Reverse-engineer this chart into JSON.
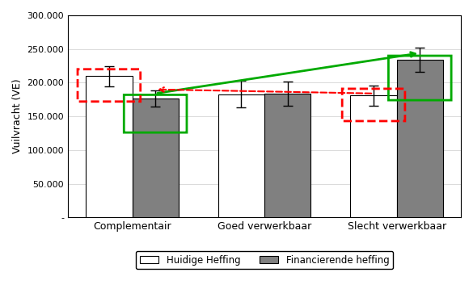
{
  "categories": [
    "Complementair",
    "Goed verwerkbaar",
    "Slecht verwerkbaar"
  ],
  "huidige_values": [
    210000,
    183000,
    181000
  ],
  "financierende_values": [
    176000,
    184000,
    234000
  ],
  "huidige_errors": [
    15000,
    20000,
    15000
  ],
  "financierende_errors": [
    12000,
    18000,
    18000
  ],
  "bar_width": 0.35,
  "huidige_color": "#ffffff",
  "financierende_color": "#808080",
  "bar_edge_color": "#000000",
  "ylabel": "Vuilvracht (VE)",
  "ylim_min": 0,
  "ylim_max": 300000,
  "yticks": [
    0,
    50000,
    100000,
    150000,
    200000,
    250000,
    300000
  ],
  "ytick_labels": [
    "-",
    "50.000",
    "100.000",
    "150.000",
    "200.000",
    "250.000",
    "300.000"
  ],
  "legend_labels": [
    "Huidige Heffing",
    "Financierende heffing"
  ],
  "background_color": "#ffffff",
  "green_box_color": "#00aa00",
  "red_box_color": "#ff0000",
  "green_arrow_color": "#00aa00",
  "red_arrow_color": "#ff0000"
}
